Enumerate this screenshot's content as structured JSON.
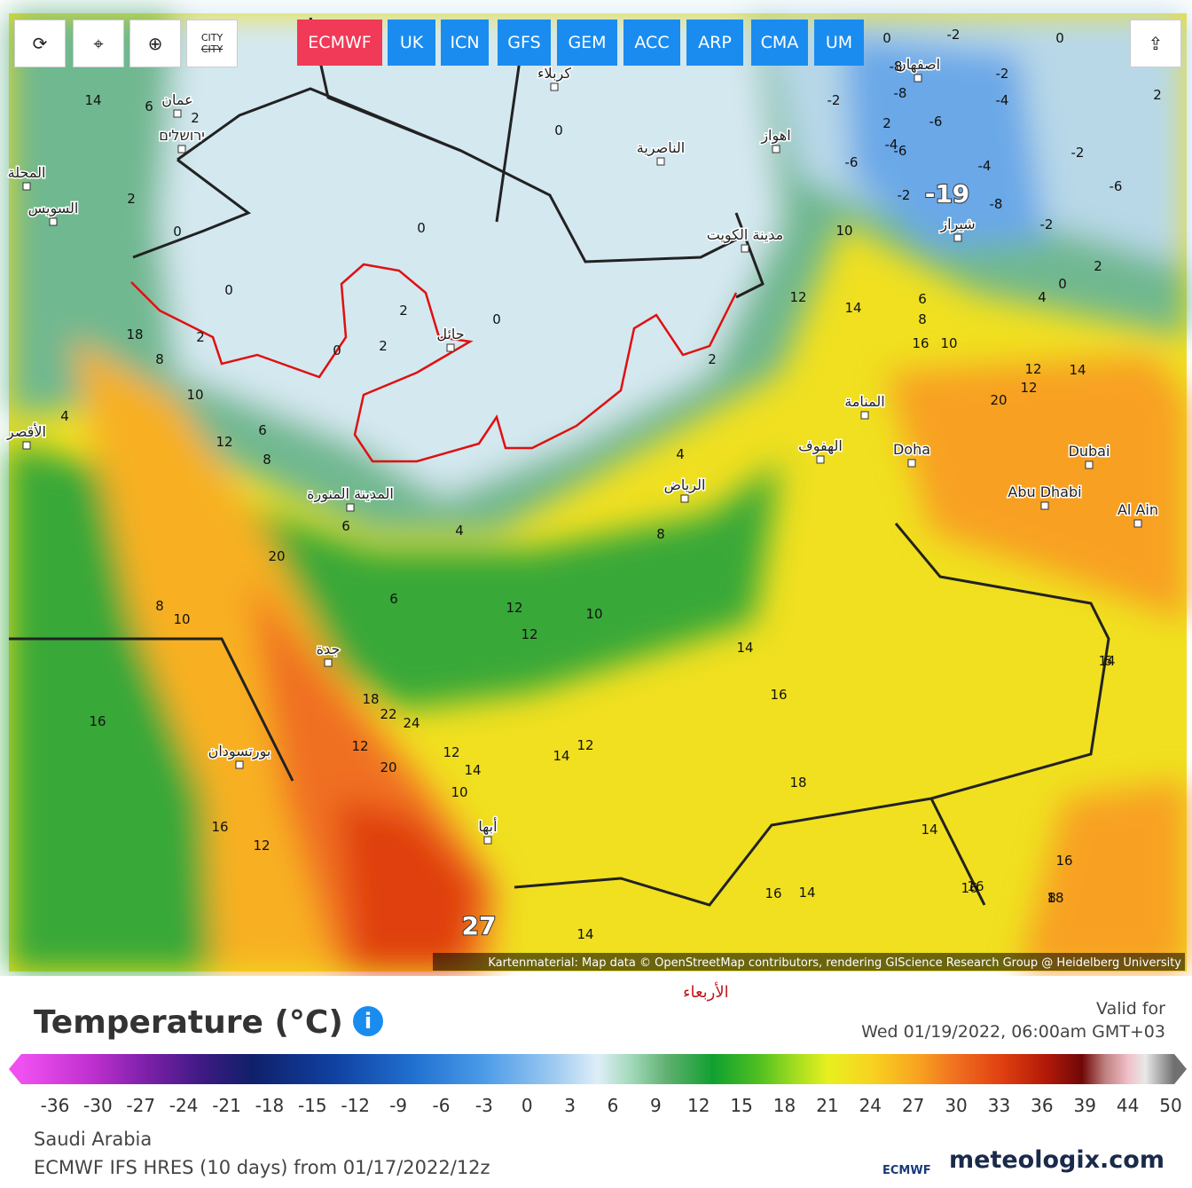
{
  "toolbar": {
    "city": "CITY",
    "models": [
      "ECMWF",
      "UK",
      "ICN",
      "GFS",
      "GEM",
      "ACC",
      "ARP",
      "CMA",
      "UM"
    ],
    "active": "ECMWF"
  },
  "map": {
    "cities": [
      "عمان",
      "ירושלים",
      "كربلاء",
      "اصفهان",
      "اهواز",
      "الناصرية",
      "مدينة الكويت",
      "شيراز",
      "حائل",
      "المنامة",
      "الهفوف",
      "Doha",
      "Dubai",
      "Abu Dhabi",
      "Al Ain",
      "الرياض",
      "المدينة المنورة",
      "جدة",
      "بورتسودان",
      "أبها",
      "السويس",
      "المحلة",
      "الأقصر"
    ],
    "extremes": [
      -19,
      27
    ],
    "contours": [
      14,
      6,
      2,
      -2,
      0,
      2,
      0,
      2,
      -2,
      0,
      -2,
      -6,
      -8,
      -4,
      -6,
      -8,
      -4,
      -2,
      -2,
      -6,
      -4,
      -6,
      -8,
      -2,
      2,
      0,
      10,
      12,
      14,
      6,
      8,
      10,
      12,
      14,
      20,
      12,
      0,
      2,
      0,
      2,
      0,
      0,
      0,
      2,
      2,
      4,
      0,
      2,
      4,
      8,
      16,
      18,
      8,
      10,
      4,
      12,
      6,
      8,
      6,
      20,
      8,
      10,
      4,
      6,
      10,
      12,
      12,
      14,
      14,
      16,
      14,
      16,
      18,
      16,
      16,
      14,
      16,
      18,
      6,
      8,
      14,
      16,
      18,
      22,
      24,
      12,
      20,
      12,
      10,
      16,
      12,
      14,
      14,
      12
    ],
    "attribution": "Kartenmaterial: Map data © OpenStreetMap contributors, rendering GIScience Research Group @ Heidelberg University"
  },
  "header": {
    "day": "الأربعاء",
    "title": "Temperature (°C)",
    "valid_label": "Valid for",
    "valid": "Wed 01/19/2022, 06:00am GMT+03"
  },
  "legend": {
    "ticks": [
      -36,
      -30,
      -27,
      -24,
      -21,
      -18,
      -15,
      -12,
      -9,
      -6,
      -3,
      0,
      3,
      6,
      9,
      12,
      15,
      18,
      21,
      24,
      27,
      30,
      33,
      36,
      39,
      44,
      50
    ]
  },
  "footer": {
    "region": "Saudi Arabia",
    "model": "ECMWF IFS HRES (10 days) from 01/17/2022/12z",
    "ecmwf": "ECMWF",
    "brand": "meteologix.com"
  }
}
